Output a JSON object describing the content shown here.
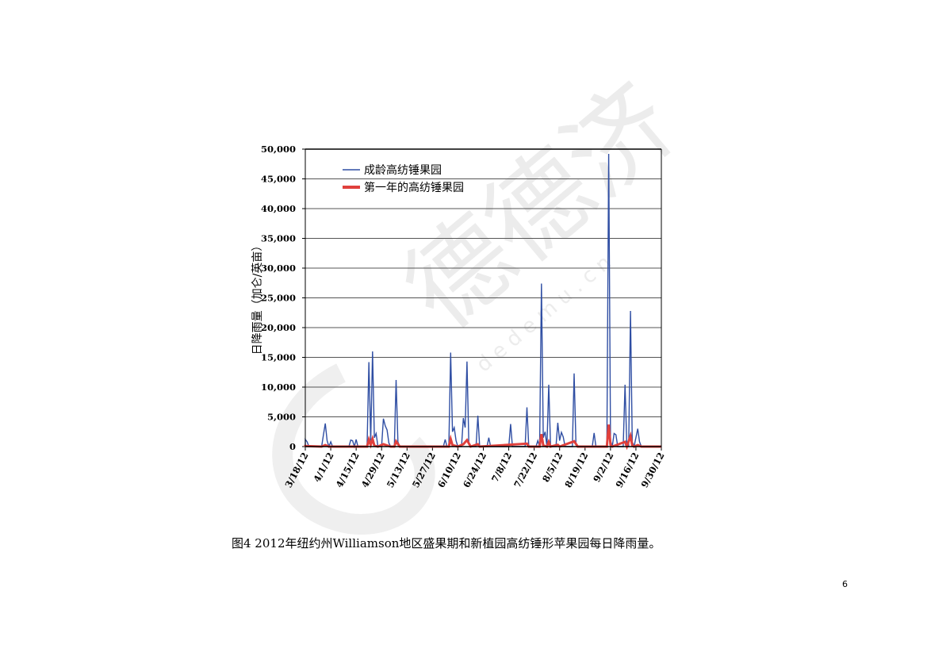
{
  "page": {
    "caption": "图4 2012年纽约州Williamson地区盛果期和新植园高纺锤形苹果园每日降雨量。",
    "page_number": "6"
  },
  "watermark": {
    "text": "德德济",
    "url": "d e d e m u . c n"
  },
  "colors": {
    "mature_series": "#2f4ea3",
    "new_series": "#e0403c",
    "grid": "#555555"
  },
  "chart_data": {
    "type": "line",
    "ylabel": "日降雨量（加仑/英亩）",
    "ylim": [
      0,
      50000
    ],
    "y_ticks": [
      0,
      5000,
      10000,
      15000,
      20000,
      25000,
      30000,
      35000,
      40000,
      45000,
      50000
    ],
    "y_tick_labels": [
      "0",
      "5,000",
      "10,000",
      "15,000",
      "20,000",
      "25,000",
      "30,000",
      "35,000",
      "40,000",
      "45,000",
      "50,000"
    ],
    "x_tick_labels": [
      "3/18/12",
      "4/1/12",
      "4/15/12",
      "4/29/12",
      "5/13/12",
      "5/27/12",
      "6/10/12",
      "6/24/12",
      "7/8/12",
      "7/22/12",
      "8/5/12",
      "8/19/12",
      "9/2/12",
      "9/16/12",
      "9/30/12"
    ],
    "x_start": "3/18/12",
    "x_end": "9/30/12",
    "legend_position": "top-left",
    "series": [
      {
        "name": "成龄高纺锤果园",
        "points": [
          [
            "3/18/12",
            1200
          ],
          [
            "3/19/12",
            800
          ],
          [
            "3/20/12",
            0
          ],
          [
            "3/27/12",
            0
          ],
          [
            "3/28/12",
            2000
          ],
          [
            "3/29/12",
            3900
          ],
          [
            "3/30/12",
            1000
          ],
          [
            "3/31/12",
            0
          ],
          [
            "4/1/12",
            800
          ],
          [
            "4/2/12",
            0
          ],
          [
            "4/11/12",
            0
          ],
          [
            "4/12/12",
            1100
          ],
          [
            "4/13/12",
            1000
          ],
          [
            "4/14/12",
            0
          ],
          [
            "4/15/12",
            1200
          ],
          [
            "4/16/12",
            0
          ],
          [
            "4/21/12",
            0
          ],
          [
            "4/22/12",
            14200
          ],
          [
            "4/23/12",
            1000
          ],
          [
            "4/24/12",
            16000
          ],
          [
            "4/25/12",
            1500
          ],
          [
            "4/26/12",
            2200
          ],
          [
            "4/27/12",
            0
          ],
          [
            "4/29/12",
            0
          ],
          [
            "4/30/12",
            4700
          ],
          [
            "5/1/12",
            3500
          ],
          [
            "5/2/12",
            2800
          ],
          [
            "5/3/12",
            600
          ],
          [
            "5/4/12",
            0
          ],
          [
            "5/6/12",
            0
          ],
          [
            "5/7/12",
            11200
          ],
          [
            "5/8/12",
            800
          ],
          [
            "5/9/12",
            0
          ],
          [
            "6/2/12",
            0
          ],
          [
            "6/3/12",
            1200
          ],
          [
            "6/4/12",
            0
          ],
          [
            "6/5/12",
            0
          ],
          [
            "6/6/12",
            15800
          ],
          [
            "6/7/12",
            2500
          ],
          [
            "6/8/12",
            3200
          ],
          [
            "6/9/12",
            1000
          ],
          [
            "6/10/12",
            0
          ],
          [
            "6/12/12",
            0
          ],
          [
            "6/13/12",
            4800
          ],
          [
            "6/14/12",
            3200
          ],
          [
            "6/15/12",
            14300
          ],
          [
            "6/16/12",
            600
          ],
          [
            "6/17/12",
            0
          ],
          [
            "6/20/12",
            0
          ],
          [
            "6/21/12",
            5200
          ],
          [
            "6/22/12",
            0
          ],
          [
            "6/26/12",
            0
          ],
          [
            "6/27/12",
            1500
          ],
          [
            "6/28/12",
            0
          ],
          [
            "7/8/12",
            0
          ],
          [
            "7/9/12",
            3800
          ],
          [
            "7/10/12",
            0
          ],
          [
            "7/17/12",
            0
          ],
          [
            "7/18/12",
            6600
          ],
          [
            "7/19/12",
            0
          ],
          [
            "7/23/12",
            0
          ],
          [
            "7/24/12",
            1000
          ],
          [
            "7/25/12",
            0
          ],
          [
            "7/26/12",
            27400
          ],
          [
            "7/27/12",
            1500
          ],
          [
            "7/28/12",
            2500
          ],
          [
            "7/29/12",
            0
          ],
          [
            "7/30/12",
            10400
          ],
          [
            "7/31/12",
            0
          ],
          [
            "8/3/12",
            0
          ],
          [
            "8/4/12",
            4000
          ],
          [
            "8/5/12",
            1000
          ],
          [
            "8/6/12",
            2400
          ],
          [
            "8/7/12",
            1600
          ],
          [
            "8/8/12",
            0
          ],
          [
            "8/12/12",
            0
          ],
          [
            "8/13/12",
            12300
          ],
          [
            "8/14/12",
            500
          ],
          [
            "8/15/12",
            0
          ],
          [
            "8/23/12",
            0
          ],
          [
            "8/24/12",
            2300
          ],
          [
            "8/25/12",
            0
          ],
          [
            "8/31/12",
            0
          ],
          [
            "9/1/12",
            49200
          ],
          [
            "9/2/12",
            1000
          ],
          [
            "9/3/12",
            0
          ],
          [
            "9/4/12",
            2200
          ],
          [
            "9/5/12",
            2000
          ],
          [
            "9/6/12",
            0
          ],
          [
            "9/9/12",
            0
          ],
          [
            "9/10/12",
            10400
          ],
          [
            "9/11/12",
            0
          ],
          [
            "9/12/12",
            0
          ],
          [
            "9/13/12",
            22800
          ],
          [
            "9/14/12",
            800
          ],
          [
            "9/15/12",
            0
          ],
          [
            "9/16/12",
            1500
          ],
          [
            "9/17/12",
            3000
          ],
          [
            "9/18/12",
            800
          ],
          [
            "9/19/12",
            0
          ]
        ]
      },
      {
        "name": "第一年的高纺锤果园",
        "points": [
          [
            "3/18/12",
            100
          ],
          [
            "3/27/12",
            0
          ],
          [
            "3/29/12",
            250
          ],
          [
            "3/31/12",
            0
          ],
          [
            "4/21/12",
            0
          ],
          [
            "4/22/12",
            1200
          ],
          [
            "4/23/12",
            300
          ],
          [
            "4/24/12",
            1300
          ],
          [
            "4/25/12",
            150
          ],
          [
            "4/27/12",
            0
          ],
          [
            "4/30/12",
            400
          ],
          [
            "5/2/12",
            200
          ],
          [
            "5/4/12",
            0
          ],
          [
            "5/6/12",
            0
          ],
          [
            "5/7/12",
            900
          ],
          [
            "5/9/12",
            0
          ],
          [
            "6/5/12",
            0
          ],
          [
            "6/6/12",
            1300
          ],
          [
            "6/7/12",
            250
          ],
          [
            "6/10/12",
            0
          ],
          [
            "6/13/12",
            400
          ],
          [
            "6/15/12",
            1100
          ],
          [
            "6/17/12",
            0
          ],
          [
            "6/21/12",
            400
          ],
          [
            "6/22/12",
            0
          ],
          [
            "7/18/12",
            500
          ],
          [
            "7/19/12",
            0
          ],
          [
            "7/25/12",
            0
          ],
          [
            "7/26/12",
            2100
          ],
          [
            "7/27/12",
            200
          ],
          [
            "7/29/12",
            0
          ],
          [
            "7/30/12",
            800
          ],
          [
            "7/31/12",
            0
          ],
          [
            "8/4/12",
            300
          ],
          [
            "8/5/12",
            0
          ],
          [
            "8/13/12",
            900
          ],
          [
            "8/15/12",
            0
          ],
          [
            "8/31/12",
            0
          ],
          [
            "9/1/12",
            3700
          ],
          [
            "9/2/12",
            300
          ],
          [
            "9/3/12",
            0
          ],
          [
            "9/10/12",
            800
          ],
          [
            "9/11/12",
            0
          ],
          [
            "9/13/12",
            1800
          ],
          [
            "9/14/12",
            200
          ],
          [
            "9/15/12",
            0
          ],
          [
            "9/17/12",
            250
          ],
          [
            "9/19/12",
            0
          ]
        ]
      }
    ]
  }
}
